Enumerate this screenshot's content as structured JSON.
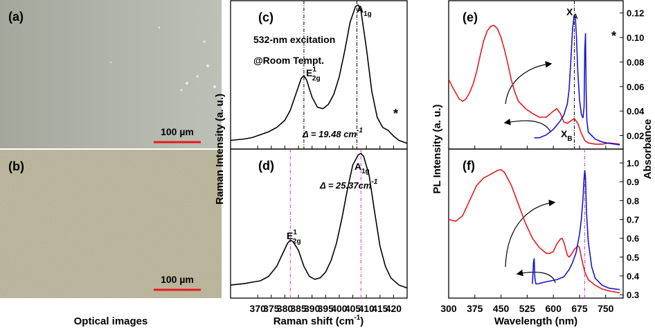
{
  "optical_images": {
    "a_label": "(a)",
    "b_label": "(b)",
    "scale_bar": "100 µm",
    "caption": "Optical images"
  },
  "chart_data": [
    {
      "type": "line",
      "panel": "(c)",
      "ylabel": "Raman Intensity (a. u.)",
      "notes": [
        "532-nm excitation",
        "@Room Tempt."
      ],
      "delta": {
        "text": "Δ = 19.48 cm",
        "sup": "-1"
      },
      "peak_labels": [
        {
          "text": "E",
          "sup": "1",
          "sub": "2g"
        },
        {
          "text": "A",
          "sub": "1g"
        }
      ],
      "asterisk": "*",
      "markers": [
        387,
        406.5
      ],
      "marker_color": "#000000",
      "xlim": [
        360,
        425
      ],
      "xticks": [
        370,
        375,
        380,
        385,
        390,
        395,
        400,
        405,
        410,
        415,
        420
      ],
      "ylim": [
        0,
        1.03
      ],
      "series": [
        {
          "color": "#000000",
          "x": [
            360,
            365,
            368,
            371,
            374,
            377,
            380,
            382,
            384,
            386,
            387,
            388,
            390,
            392,
            394,
            396,
            398,
            400,
            402,
            404,
            406,
            407,
            408,
            410,
            412,
            414,
            416,
            418,
            420,
            422,
            425
          ],
          "values": [
            0.06,
            0.07,
            0.08,
            0.1,
            0.12,
            0.15,
            0.2,
            0.27,
            0.38,
            0.49,
            0.51,
            0.48,
            0.36,
            0.29,
            0.28,
            0.31,
            0.38,
            0.5,
            0.68,
            0.88,
            0.99,
            1.0,
            0.96,
            0.7,
            0.4,
            0.22,
            0.15,
            0.13,
            0.09,
            0.06,
            0.04
          ]
        }
      ]
    },
    {
      "type": "line",
      "panel": "(d)",
      "xlabel": {
        "text": "Raman shift (cm",
        "sup": "-1",
        "tail": ")"
      },
      "delta": {
        "text": "Δ = 25.37cm",
        "sup": "-1"
      },
      "peak_labels": [
        {
          "text": "E",
          "sup": "1",
          "sub": "2g"
        },
        {
          "text": "A",
          "sub": "1g"
        }
      ],
      "markers": [
        382,
        408
      ],
      "marker_color": "#c040c0",
      "xlim": [
        360,
        425
      ],
      "xticks": [
        370,
        375,
        380,
        385,
        390,
        395,
        400,
        405,
        410,
        415,
        420
      ],
      "ylim": [
        0,
        1.03
      ],
      "series": [
        {
          "color": "#000000",
          "x": [
            360,
            365,
            368,
            371,
            374,
            377,
            379,
            381,
            382,
            383,
            385,
            387,
            389,
            391,
            393,
            395,
            397,
            399,
            401,
            403,
            405,
            407,
            408,
            409,
            411,
            413,
            415,
            417,
            419,
            422,
            425
          ],
          "values": [
            0.09,
            0.1,
            0.11,
            0.12,
            0.15,
            0.22,
            0.3,
            0.38,
            0.4,
            0.39,
            0.33,
            0.22,
            0.15,
            0.13,
            0.14,
            0.18,
            0.26,
            0.38,
            0.55,
            0.75,
            0.92,
            0.99,
            1.0,
            0.98,
            0.85,
            0.6,
            0.36,
            0.22,
            0.14,
            0.09,
            0.07
          ]
        }
      ]
    },
    {
      "type": "line",
      "panel": "(e)",
      "ylabel": "PL Intensity (a. u.)",
      "y2label": "Absorbance",
      "peak_labels": [
        {
          "text": "X",
          "sub": "A"
        },
        {
          "text": "X",
          "sub": "B"
        }
      ],
      "asterisk": "*",
      "markers": [
        660
      ],
      "marker_color": "#000000",
      "xlim": [
        300,
        800
      ],
      "xticks": [
        300,
        375,
        450,
        525,
        600,
        675,
        750
      ],
      "ylim": [
        0,
        1.05
      ],
      "y2lim": [
        0.009,
        0.13
      ],
      "y2ticks": [
        0.02,
        0.04,
        0.06,
        0.08,
        {
          "value": 0.1,
          "label": "0.10"
        },
        0.12
      ],
      "series": [
        {
          "color": "#e8191c",
          "axis": "y2",
          "x": [
            300,
            310,
            320,
            330,
            340,
            350,
            360,
            370,
            380,
            390,
            400,
            410,
            420,
            430,
            440,
            450,
            460,
            470,
            480,
            490,
            500,
            520,
            540,
            560,
            580,
            600,
            610,
            620,
            630,
            640,
            650,
            660,
            670,
            680,
            690,
            700,
            720,
            740,
            760,
            790
          ],
          "values": [
            0.066,
            0.06,
            0.055,
            0.05,
            0.048,
            0.05,
            0.055,
            0.062,
            0.072,
            0.085,
            0.097,
            0.105,
            0.109,
            0.11,
            0.107,
            0.1,
            0.09,
            0.078,
            0.065,
            0.055,
            0.048,
            0.042,
            0.038,
            0.035,
            0.035,
            0.04,
            0.042,
            0.038,
            0.031,
            0.03,
            0.032,
            0.034,
            0.03,
            0.022,
            0.016,
            0.014,
            0.013,
            0.013,
            0.014,
            0.013
          ]
        },
        {
          "color": "#1515d0",
          "x": [
            545,
            560,
            580,
            600,
            620,
            630,
            640,
            645,
            650,
            655,
            660,
            663,
            666,
            670,
            675,
            680,
            685,
            688,
            690,
            692,
            694,
            696,
            700,
            720,
            740,
            760,
            790
          ],
          "values": [
            0.08,
            0.08,
            0.1,
            0.14,
            0.2,
            0.24,
            0.32,
            0.42,
            0.62,
            0.85,
            0.95,
            0.93,
            0.8,
            0.55,
            0.35,
            0.25,
            0.22,
            0.3,
            0.7,
            0.82,
            0.4,
            0.2,
            0.12,
            0.07,
            0.05,
            0.04,
            0.03
          ]
        }
      ]
    },
    {
      "type": "line",
      "panel": "(f)",
      "xlabel": {
        "text": "Wavelength (nm)"
      },
      "markers": [
        690
      ],
      "marker_color": "#c040c0",
      "xlim": [
        300,
        800
      ],
      "xticks": [
        300,
        375,
        450,
        525,
        600,
        675,
        750
      ],
      "ylim": [
        0,
        1.05
      ],
      "y2lim": [
        0.282,
        1.074
      ],
      "y2ticks": [
        0.3,
        0.4,
        0.5,
        0.6,
        0.7,
        0.8,
        0.9,
        {
          "value": 1.0,
          "label": "1.0"
        }
      ],
      "series": [
        {
          "color": "#e8191c",
          "axis": "y2",
          "x": [
            300,
            320,
            340,
            360,
            380,
            400,
            420,
            440,
            450,
            460,
            480,
            500,
            520,
            540,
            560,
            580,
            590,
            600,
            610,
            620,
            625,
            630,
            640,
            645,
            650,
            660,
            670,
            675,
            680,
            690,
            700,
            720,
            740,
            760,
            790
          ],
          "values": [
            0.7,
            0.69,
            0.72,
            0.8,
            0.88,
            0.92,
            0.94,
            0.96,
            0.965,
            0.95,
            0.88,
            0.78,
            0.68,
            0.6,
            0.55,
            0.52,
            0.52,
            0.53,
            0.57,
            0.595,
            0.6,
            0.58,
            0.51,
            0.5,
            0.51,
            0.54,
            0.56,
            0.55,
            0.5,
            0.42,
            0.38,
            0.35,
            0.33,
            0.32,
            0.31
          ]
        },
        {
          "color": "#1515d0",
          "x": [
            540,
            543,
            545,
            547,
            550,
            555,
            570,
            590,
            610,
            630,
            645,
            655,
            665,
            675,
            680,
            685,
            688,
            690,
            692,
            695,
            700,
            710,
            720,
            740,
            760,
            790
          ],
          "values": [
            0.1,
            0.25,
            0.28,
            0.14,
            0.1,
            0.1,
            0.11,
            0.12,
            0.13,
            0.15,
            0.2,
            0.25,
            0.32,
            0.45,
            0.55,
            0.7,
            0.85,
            0.9,
            0.85,
            0.6,
            0.4,
            0.22,
            0.14,
            0.09,
            0.07,
            0.06
          ]
        }
      ]
    }
  ]
}
